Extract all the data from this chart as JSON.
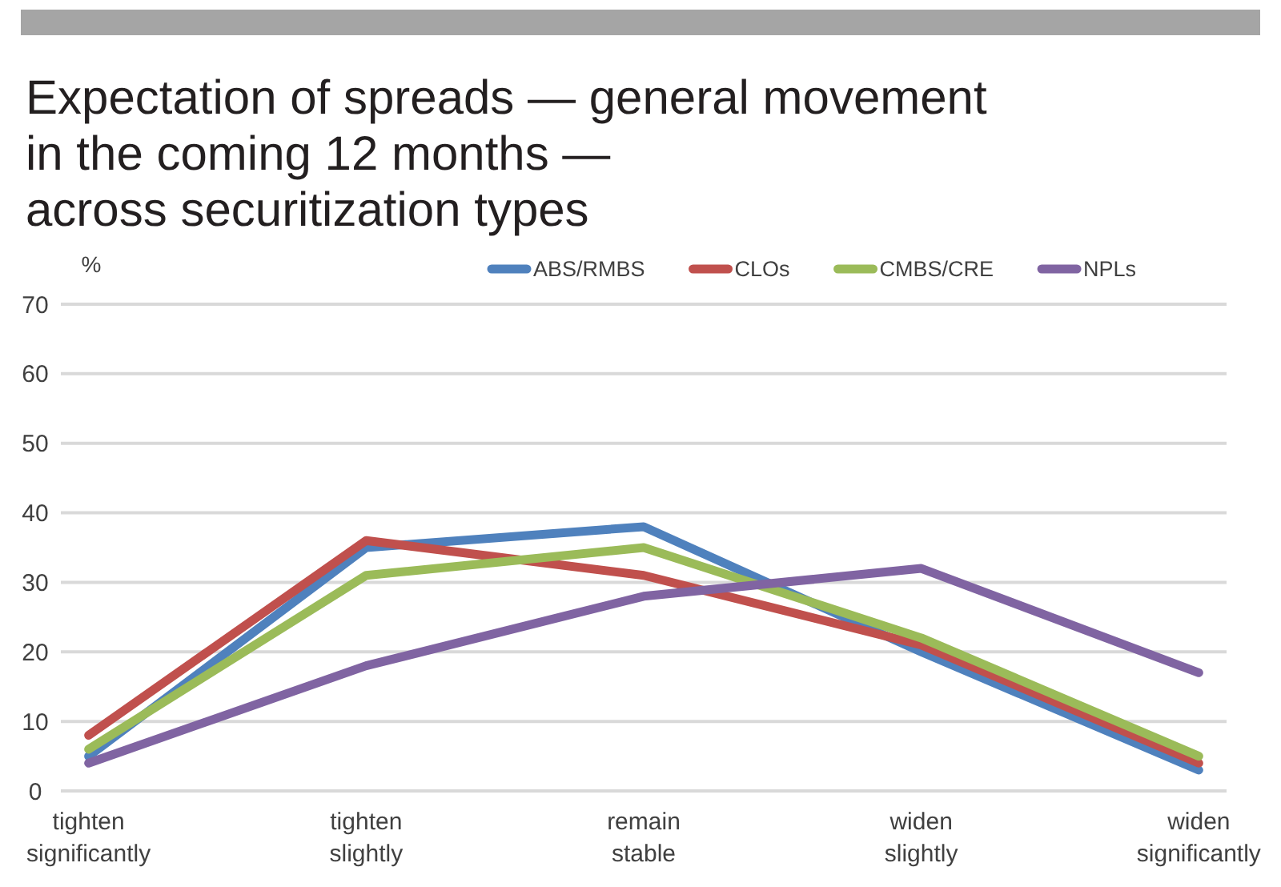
{
  "chart_data": {
    "type": "line",
    "title": "Expectation of spreads — general movement in the coming 12 months — across securitization types",
    "ylabel": "%",
    "categories": [
      "tighten significantly",
      "tighten slightly",
      "remain stable",
      "widen slightly",
      "widen significantly"
    ],
    "series": [
      {
        "name": "ABS/RMBS",
        "color": "#4f81bd",
        "values": [
          5,
          35,
          38,
          20,
          3
        ]
      },
      {
        "name": "CLOs",
        "color": "#c0504d",
        "values": [
          8,
          36,
          31,
          21,
          4
        ]
      },
      {
        "name": "CMBS/CRE",
        "color": "#9bbb59",
        "values": [
          6,
          31,
          35,
          22,
          5
        ]
      },
      {
        "name": "NPLs",
        "color": "#8064a2",
        "values": [
          4,
          18,
          28,
          32,
          17
        ]
      }
    ],
    "ylim": [
      0,
      70
    ],
    "yticks": [
      0,
      10,
      20,
      30,
      40,
      50,
      60,
      70
    ],
    "grid": "y",
    "legend": "top"
  }
}
